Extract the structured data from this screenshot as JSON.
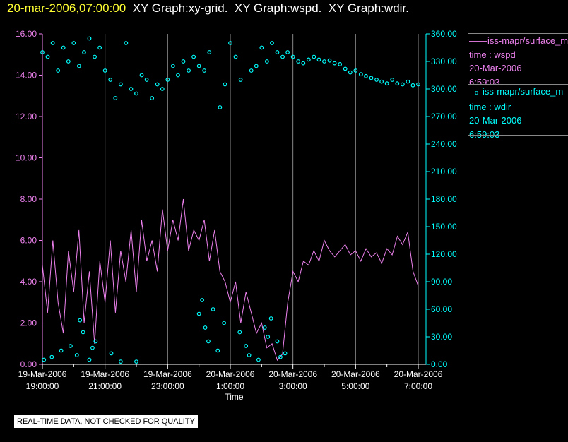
{
  "header": {
    "datetime": "20-mar-2006,07:00:00",
    "graphs": "XY Graph:xy-grid.  XY Graph:wspd.  XY Graph:wdir."
  },
  "legend": [
    {
      "symbol": "——",
      "source": "iss-mapr/surface_m",
      "series": "time : wspd",
      "date": "20-Mar-2006",
      "time": "6:59:03",
      "color": "#ee82ee"
    },
    {
      "symbol": "o",
      "source": "iss-mapr/surface_m",
      "series": "time : wdir",
      "date": "20-Mar-2006",
      "time": "6:59:03",
      "color": "#00ffff"
    }
  ],
  "note": "REAL-TIME DATA, NOT CHECKED FOR QUALITY",
  "chart_data": {
    "type": "line",
    "xlabel": "Time",
    "x_units": "hours since 19-Mar-2006 00:00",
    "xlim": [
      19,
      31
    ],
    "x_ticks": [
      {
        "value": 19,
        "date": "19-Mar-2006",
        "time": "19:00:00"
      },
      {
        "value": 21,
        "date": "19-Mar-2006",
        "time": "21:00:00"
      },
      {
        "value": 23,
        "date": "19-Mar-2006",
        "time": "23:00:00"
      },
      {
        "value": 25,
        "date": "20-Mar-2006",
        "time": "1:00:00"
      },
      {
        "value": 27,
        "date": "20-Mar-2006",
        "time": "3:00:00"
      },
      {
        "value": 29,
        "date": "20-Mar-2006",
        "time": "5:00:00"
      },
      {
        "value": 31,
        "date": "20-Mar-2006",
        "time": "7:00:00"
      }
    ],
    "y_left": {
      "ylim": [
        0,
        16
      ],
      "ticks": [
        "0.00",
        "2.00",
        "4.00",
        "6.00",
        "8.00",
        "10.00",
        "12.00",
        "14.00",
        "16.00"
      ],
      "color": "#ee82ee"
    },
    "y_right": {
      "ylim": [
        0,
        360
      ],
      "ticks": [
        "0.00",
        "30.00",
        "60.00",
        "90.00",
        "120.00",
        "150.00",
        "180.00",
        "210.00",
        "240.00",
        "270.00",
        "300.00",
        "330.00",
        "360.00"
      ],
      "color": "#00ffff"
    },
    "grid": "vertical",
    "legend_position": "right",
    "series": [
      {
        "name": "wspd",
        "type": "line",
        "axis": "left",
        "x_start": 19,
        "x_step": 0.16667,
        "values": [
          4.8,
          2.5,
          6.0,
          3.0,
          1.5,
          5.5,
          3.5,
          6.5,
          2.0,
          4.5,
          1.0,
          5.0,
          3.0,
          6.0,
          2.5,
          5.5,
          4.0,
          6.5,
          3.5,
          7.0,
          5.0,
          6.0,
          4.5,
          7.5,
          5.5,
          7.0,
          6.0,
          8.0,
          5.5,
          6.5,
          6.0,
          7.0,
          5.0,
          6.5,
          4.5,
          4.0,
          3.0,
          4.0,
          2.0,
          3.5,
          2.5,
          1.5,
          2.0,
          0.8,
          1.0,
          0.2,
          0.5,
          3.0,
          4.5,
          4.0,
          5.0,
          4.8,
          5.5,
          5.0,
          6.0,
          5.5,
          5.2,
          5.5,
          5.8,
          5.3,
          5.5,
          5.0,
          5.6,
          5.2,
          5.4,
          4.9,
          5.6,
          5.3,
          6.2,
          5.8,
          6.4,
          4.5,
          3.8
        ]
      },
      {
        "name": "wdir",
        "type": "scatter",
        "axis": "right",
        "points": [
          [
            19.0,
            340
          ],
          [
            19.17,
            335
          ],
          [
            19.33,
            350
          ],
          [
            19.5,
            320
          ],
          [
            19.67,
            345
          ],
          [
            19.83,
            330
          ],
          [
            20.0,
            350
          ],
          [
            20.17,
            325
          ],
          [
            20.33,
            340
          ],
          [
            20.5,
            355
          ],
          [
            20.67,
            335
          ],
          [
            20.83,
            345
          ],
          [
            21.0,
            320
          ],
          [
            21.17,
            310
          ],
          [
            21.33,
            290
          ],
          [
            21.5,
            305
          ],
          [
            21.67,
            350
          ],
          [
            21.83,
            300
          ],
          [
            22.0,
            295
          ],
          [
            22.17,
            315
          ],
          [
            22.33,
            310
          ],
          [
            22.5,
            290
          ],
          [
            22.67,
            305
          ],
          [
            22.83,
            300
          ],
          [
            23.0,
            310
          ],
          [
            23.17,
            325
          ],
          [
            23.33,
            315
          ],
          [
            23.5,
            330
          ],
          [
            23.67,
            320
          ],
          [
            23.83,
            335
          ],
          [
            24.0,
            325
          ],
          [
            24.17,
            320
          ],
          [
            24.33,
            340
          ],
          [
            24.67,
            280
          ],
          [
            24.83,
            305
          ],
          [
            25.0,
            350
          ],
          [
            25.17,
            335
          ],
          [
            25.33,
            310
          ],
          [
            25.67,
            320
          ],
          [
            25.83,
            325
          ],
          [
            26.0,
            345
          ],
          [
            26.17,
            330
          ],
          [
            26.33,
            350
          ],
          [
            26.5,
            340
          ],
          [
            26.67,
            335
          ],
          [
            26.83,
            340
          ],
          [
            27.0,
            335
          ],
          [
            27.17,
            330
          ],
          [
            27.33,
            328
          ],
          [
            27.5,
            332
          ],
          [
            27.67,
            335
          ],
          [
            27.83,
            332
          ],
          [
            28.0,
            330
          ],
          [
            28.17,
            331
          ],
          [
            28.33,
            328
          ],
          [
            28.5,
            327
          ],
          [
            28.67,
            322
          ],
          [
            28.83,
            318
          ],
          [
            29.0,
            320
          ],
          [
            29.17,
            316
          ],
          [
            29.33,
            314
          ],
          [
            29.5,
            312
          ],
          [
            29.67,
            310
          ],
          [
            29.83,
            308
          ],
          [
            30.0,
            306
          ],
          [
            30.17,
            310
          ],
          [
            30.33,
            306
          ],
          [
            30.5,
            305
          ],
          [
            30.67,
            308
          ],
          [
            30.83,
            304
          ],
          [
            31.0,
            305
          ],
          [
            19.05,
            5
          ],
          [
            19.3,
            8
          ],
          [
            19.6,
            15
          ],
          [
            19.9,
            20
          ],
          [
            20.1,
            10
          ],
          [
            20.3,
            35
          ],
          [
            20.5,
            5
          ],
          [
            20.7,
            25
          ],
          [
            21.2,
            12
          ],
          [
            21.5,
            3
          ],
          [
            22.0,
            3
          ],
          [
            20.2,
            48
          ],
          [
            20.6,
            18
          ],
          [
            24.0,
            55
          ],
          [
            24.1,
            70
          ],
          [
            24.2,
            40
          ],
          [
            24.3,
            25
          ],
          [
            24.45,
            60
          ],
          [
            24.6,
            15
          ],
          [
            24.8,
            45
          ],
          [
            25.3,
            35
          ],
          [
            25.5,
            20
          ],
          [
            25.6,
            10
          ],
          [
            25.9,
            5
          ],
          [
            26.1,
            40
          ],
          [
            26.3,
            50
          ],
          [
            26.5,
            25
          ],
          [
            26.6,
            8
          ],
          [
            26.75,
            12
          ],
          [
            26.2,
            30
          ]
        ]
      }
    ]
  }
}
